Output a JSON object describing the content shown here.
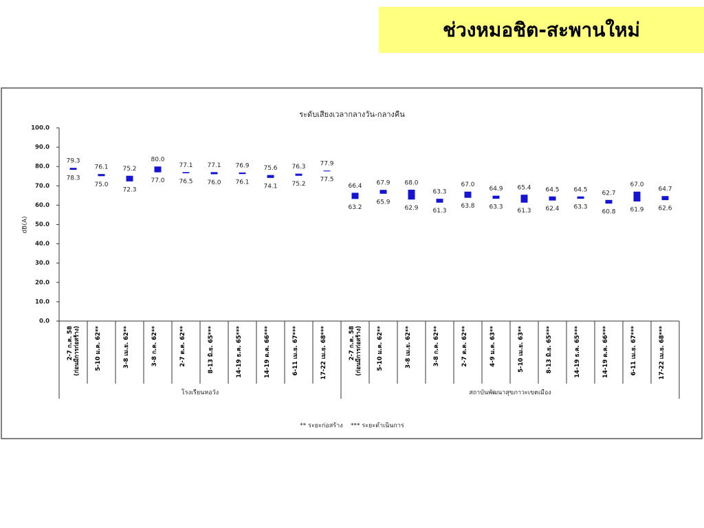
{
  "page_title": "ช่วงหมอชิต-สะพานใหม่",
  "chart_data": {
    "type": "range-bar",
    "title": "ระดับเสียงเวลากลางวัน-กลางคืน",
    "y_label": "dB(A)",
    "color": "#1414d2",
    "ylim": [
      0,
      100
    ],
    "yticks": [
      {
        "value": 0,
        "label": "0.0"
      },
      {
        "value": 10,
        "label": "10.0"
      },
      {
        "value": 20,
        "label": "20.0"
      },
      {
        "value": 30,
        "label": "30.0"
      },
      {
        "value": 40,
        "label": "40.0"
      },
      {
        "value": 50,
        "label": "50.0"
      },
      {
        "value": 60,
        "label": "60.0"
      },
      {
        "value": 70,
        "label": "70.0"
      },
      {
        "value": 80,
        "label": "80.0"
      },
      {
        "value": 90,
        "label": "90.0"
      },
      {
        "value": 100,
        "label": "100.0"
      }
    ],
    "categories": [
      "2-7 ก.ค. 58\n(ก่อนมีการก่อสร้าง)",
      "5-10 ม.ค. 62**",
      "3-8 เม.ย. 62**",
      "3-8 ก.ค. 62**",
      "2-7 ต.ค. 62**",
      "8-13 มิ.ย. 65***",
      "14-19 ธ.ค. 65***",
      "14-19 ต.ค. 66***",
      "6-11 เม.ย. 67***",
      "17-22 เม.ย. 68***",
      "2-7 ก.ค. 58\n(ก่อนมีการก่อสร้าง)",
      "5-10 ม.ค. 62**",
      "3-8 เม.ย. 62**",
      "3-8 ก.ค. 62**",
      "2-7 ต.ค. 62**",
      "4-9 ม.ค. 63**",
      "5-10 เม.ย. 63**",
      "8-13 มิ.ย. 65***",
      "14-19 ธ.ค. 65***",
      "14-19 ต.ค. 66***",
      "6-11 เม.ย. 67***",
      "17-22 เม.ย. 68***"
    ],
    "high": [
      79.3,
      76.1,
      75.2,
      80.0,
      77.1,
      77.1,
      76.9,
      75.6,
      76.3,
      77.9,
      66.4,
      67.9,
      68.0,
      63.3,
      67.0,
      64.9,
      65.4,
      64.5,
      64.5,
      62.7,
      67.0,
      64.7
    ],
    "high_labels": [
      "79.3",
      "76.1",
      "75.2",
      "80.0",
      "77.1",
      "77.1",
      "76.9",
      "75.6",
      "76.3",
      "77.9",
      "66.4",
      "67.9",
      "68.0",
      "63.3",
      "67.0",
      "64.9",
      "65.4",
      "64.5",
      "64.5",
      "62.7",
      "67.0",
      "64.7"
    ],
    "low": [
      78.3,
      75.0,
      72.3,
      77.0,
      76.5,
      76.0,
      76.1,
      74.1,
      75.2,
      77.5,
      63.2,
      65.9,
      62.9,
      61.3,
      63.8,
      63.3,
      61.3,
      62.4,
      63.3,
      60.8,
      61.9,
      62.6
    ],
    "low_labels": [
      "78.3",
      "75.0",
      "72.3",
      "77.0",
      "76.5",
      "76.0",
      "76.1",
      "74.1",
      "75.2",
      "77.5",
      "63.2",
      "65.9",
      "62.9",
      "61.3",
      "63.8",
      "63.3",
      "61.3",
      "62.4",
      "63.3",
      "60.8",
      "61.9",
      "62.6"
    ],
    "groups": [
      {
        "label": "โรงเรียนหอวัง",
        "count": 10
      },
      {
        "label": "สถาบันพัฒนาสุขภาวะเขตเมือง",
        "count": 12
      }
    ],
    "footnote": "** ระยะก่อสร้าง    *** ระยะดำเนินการ"
  }
}
